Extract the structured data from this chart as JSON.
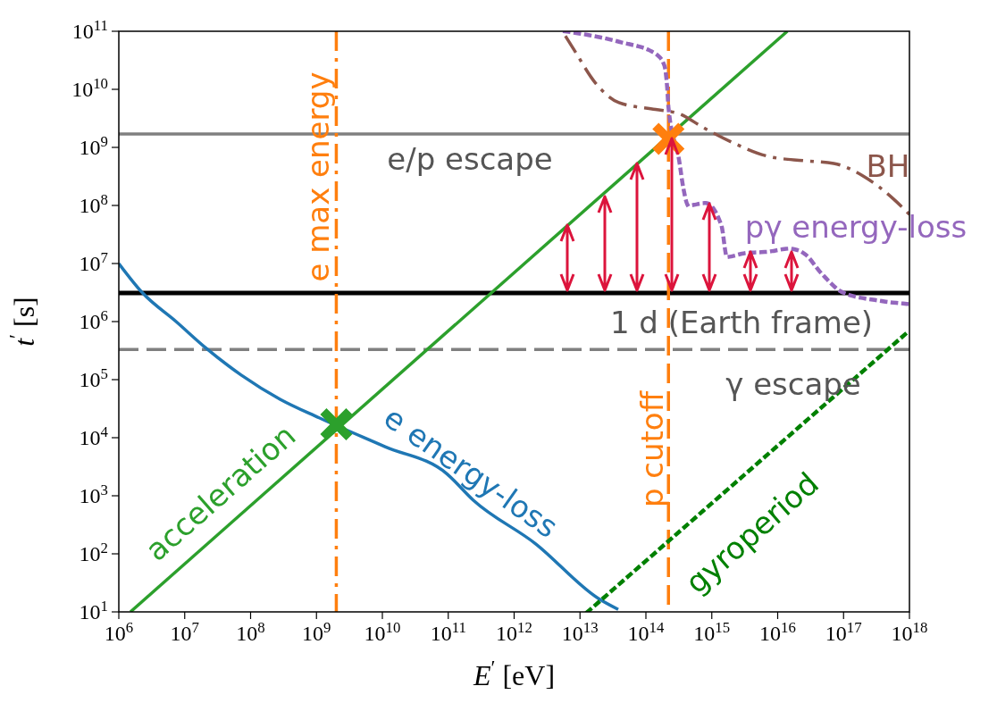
{
  "chart_data": {
    "type": "line",
    "xlabel": "E$^{′}$ [eV]",
    "ylabel": "t$^{′}$ [s]",
    "log": "xy",
    "grid": false,
    "xlim": [
      1000000.0,
      1e+18
    ],
    "ylim": [
      10,
      100000000000.0
    ],
    "xticks": [
      {
        "value": 1000000.0,
        "label": "10$^{6}$"
      },
      {
        "value": 10000000.0,
        "label": "10$^{7}$"
      },
      {
        "value": 100000000.0,
        "label": "10$^{8}$"
      },
      {
        "value": 1000000000.0,
        "label": "10$^{9}$"
      },
      {
        "value": 10000000000.0,
        "label": "10$^{10}$"
      },
      {
        "value": 100000000000.0,
        "label": "10$^{11}$"
      },
      {
        "value": 1000000000000.0,
        "label": "10$^{12}$"
      },
      {
        "value": 10000000000000.0,
        "label": "10$^{13}$"
      },
      {
        "value": 100000000000000.0,
        "label": "10$^{14}$"
      },
      {
        "value": 1000000000000000.0,
        "label": "10$^{15}$"
      },
      {
        "value": 1e+16,
        "label": "10$^{16}$"
      },
      {
        "value": 1e+17,
        "label": "10$^{17}$"
      },
      {
        "value": 1e+18,
        "label": "10$^{18}$"
      }
    ],
    "yticks": [
      {
        "value": 10,
        "label": "10$^{1}$"
      },
      {
        "value": 100,
        "label": "10$^{2}$"
      },
      {
        "value": 1000,
        "label": "10$^{3}$"
      },
      {
        "value": 10000.0,
        "label": "10$^{4}$"
      },
      {
        "value": 100000.0,
        "label": "10$^{5}$"
      },
      {
        "value": 1000000.0,
        "label": "10$^{6}$"
      },
      {
        "value": 10000000.0,
        "label": "10$^{7}$"
      },
      {
        "value": 100000000.0,
        "label": "10$^{8}$"
      },
      {
        "value": 1000000000.0,
        "label": "10$^{9}$"
      },
      {
        "value": 10000000000.0,
        "label": "10$^{10}$"
      },
      {
        "value": 100000000000.0,
        "label": "10$^{11}$"
      }
    ],
    "series": [
      {
        "name": "acceleration",
        "color": "#2ca02c",
        "line_style": "solid",
        "x": [
          1500000.0,
          1.4e+16
        ],
        "values": [
          10,
          100000000000.0
        ]
      },
      {
        "name": "e energy-loss",
        "color": "#1f77b4",
        "line_style": "solid",
        "x": [
          1000000.0,
          2300000.0,
          7400000.0,
          21000000.0,
          72000000.0,
          280000000.0,
          1100000000.0,
          11000000000.0,
          95000000000.0,
          240000000000.0,
          2100000000000.0,
          19000000000000.0,
          38000000000000.0
        ],
        "values": [
          10000000.0,
          3100000.0,
          1000000.0,
          350000.0,
          120000.0,
          46000.0,
          22000.0,
          7000,
          2400,
          840,
          150,
          17,
          11
        ]
      },
      {
        "name": "gyroperiod",
        "color": "#008000",
        "line_style": "dotted",
        "x": [
          13000000000000.0,
          1e+18
        ],
        "values": [
          10,
          700000.0
        ]
      },
      {
        "name": "BH",
        "color": "#8c564b",
        "line_style": "dashdot",
        "x": [
          6000000000000.0,
          8300000000000.0,
          17000000000000.0,
          39000000000000.0,
          140000000000000.0,
          320000000000000.0,
          740000000000000.0,
          2100000000000000.0,
          7200000000000000.0,
          2.5e+16,
          7.1e+16,
          2e+17,
          5.7e+17,
          1e+18
        ],
        "values": [
          83000000000.0,
          46000000000.0,
          13000000000.0,
          5900000000.0,
          4500000000.0,
          3800000000.0,
          2200000000.0,
          1200000000.0,
          700000000.0,
          590000000.0,
          530000000.0,
          320000000.0,
          130000000.0,
          70000000.0
        ]
      },
      {
        "name": "pγ energy-loss",
        "color": "#9467bd",
        "line_style": "dotted",
        "x": [
          5900000000000.0,
          39000000000000.0,
          140000000000000.0,
          190000000000000.0,
          210000000000000.0,
          220000000000000.0,
          320000000000000.0,
          370000000000000.0,
          440000000000000.0,
          810000000000000.0,
          1400000000000000.0,
          1700000000000000.0,
          3100000000000000.0,
          7200000000000000.0,
          1.5e+16,
          2.5e+16,
          4.7e+16,
          9.6e+16,
          3.4e+17,
          1e+18
        ],
        "values": [
          100000000000.0,
          66000000000.0,
          41000000000.0,
          26000000000.0,
          11000000000.0,
          4900000000.0,
          590000000.0,
          200000000.0,
          100000000.0,
          110000000.0,
          45000000.0,
          13000000.0,
          15000000.0,
          16000000.0,
          18000000.0,
          15000000.0,
          6600000.0,
          3200000.0,
          2300000.0,
          2000000.0
        ]
      },
      {
        "type": "scatter",
        "marker": "cross",
        "colors": [
          "#2ca02c",
          "#ff7f0e"
        ],
        "x": [
          2000000000.0,
          220000000000000.0
        ],
        "values": [
          17000.0,
          1400000000.0
        ]
      }
    ],
    "ref_lines": [
      {
        "axis": "y",
        "value": 1700000000.0,
        "label": "e/p escape",
        "color": "#808080",
        "line_style": "solid"
      },
      {
        "axis": "y",
        "value": 3100000.0,
        "label": "1 d (Earth frame)",
        "color": "#000000",
        "line_style": "solid"
      },
      {
        "axis": "y",
        "value": 330000.0,
        "label": "γ escape",
        "color": "#808080",
        "line_style": "dashed"
      },
      {
        "axis": "x",
        "value": 2000000000.0,
        "label": "e max energy",
        "color": "#ff7f0e",
        "line_style": "dashdot"
      },
      {
        "axis": "x",
        "value": 220000000000000.0,
        "label": "p cutoff",
        "color": "#ff7f0e",
        "line_style": "dashed"
      }
    ]
  }
}
